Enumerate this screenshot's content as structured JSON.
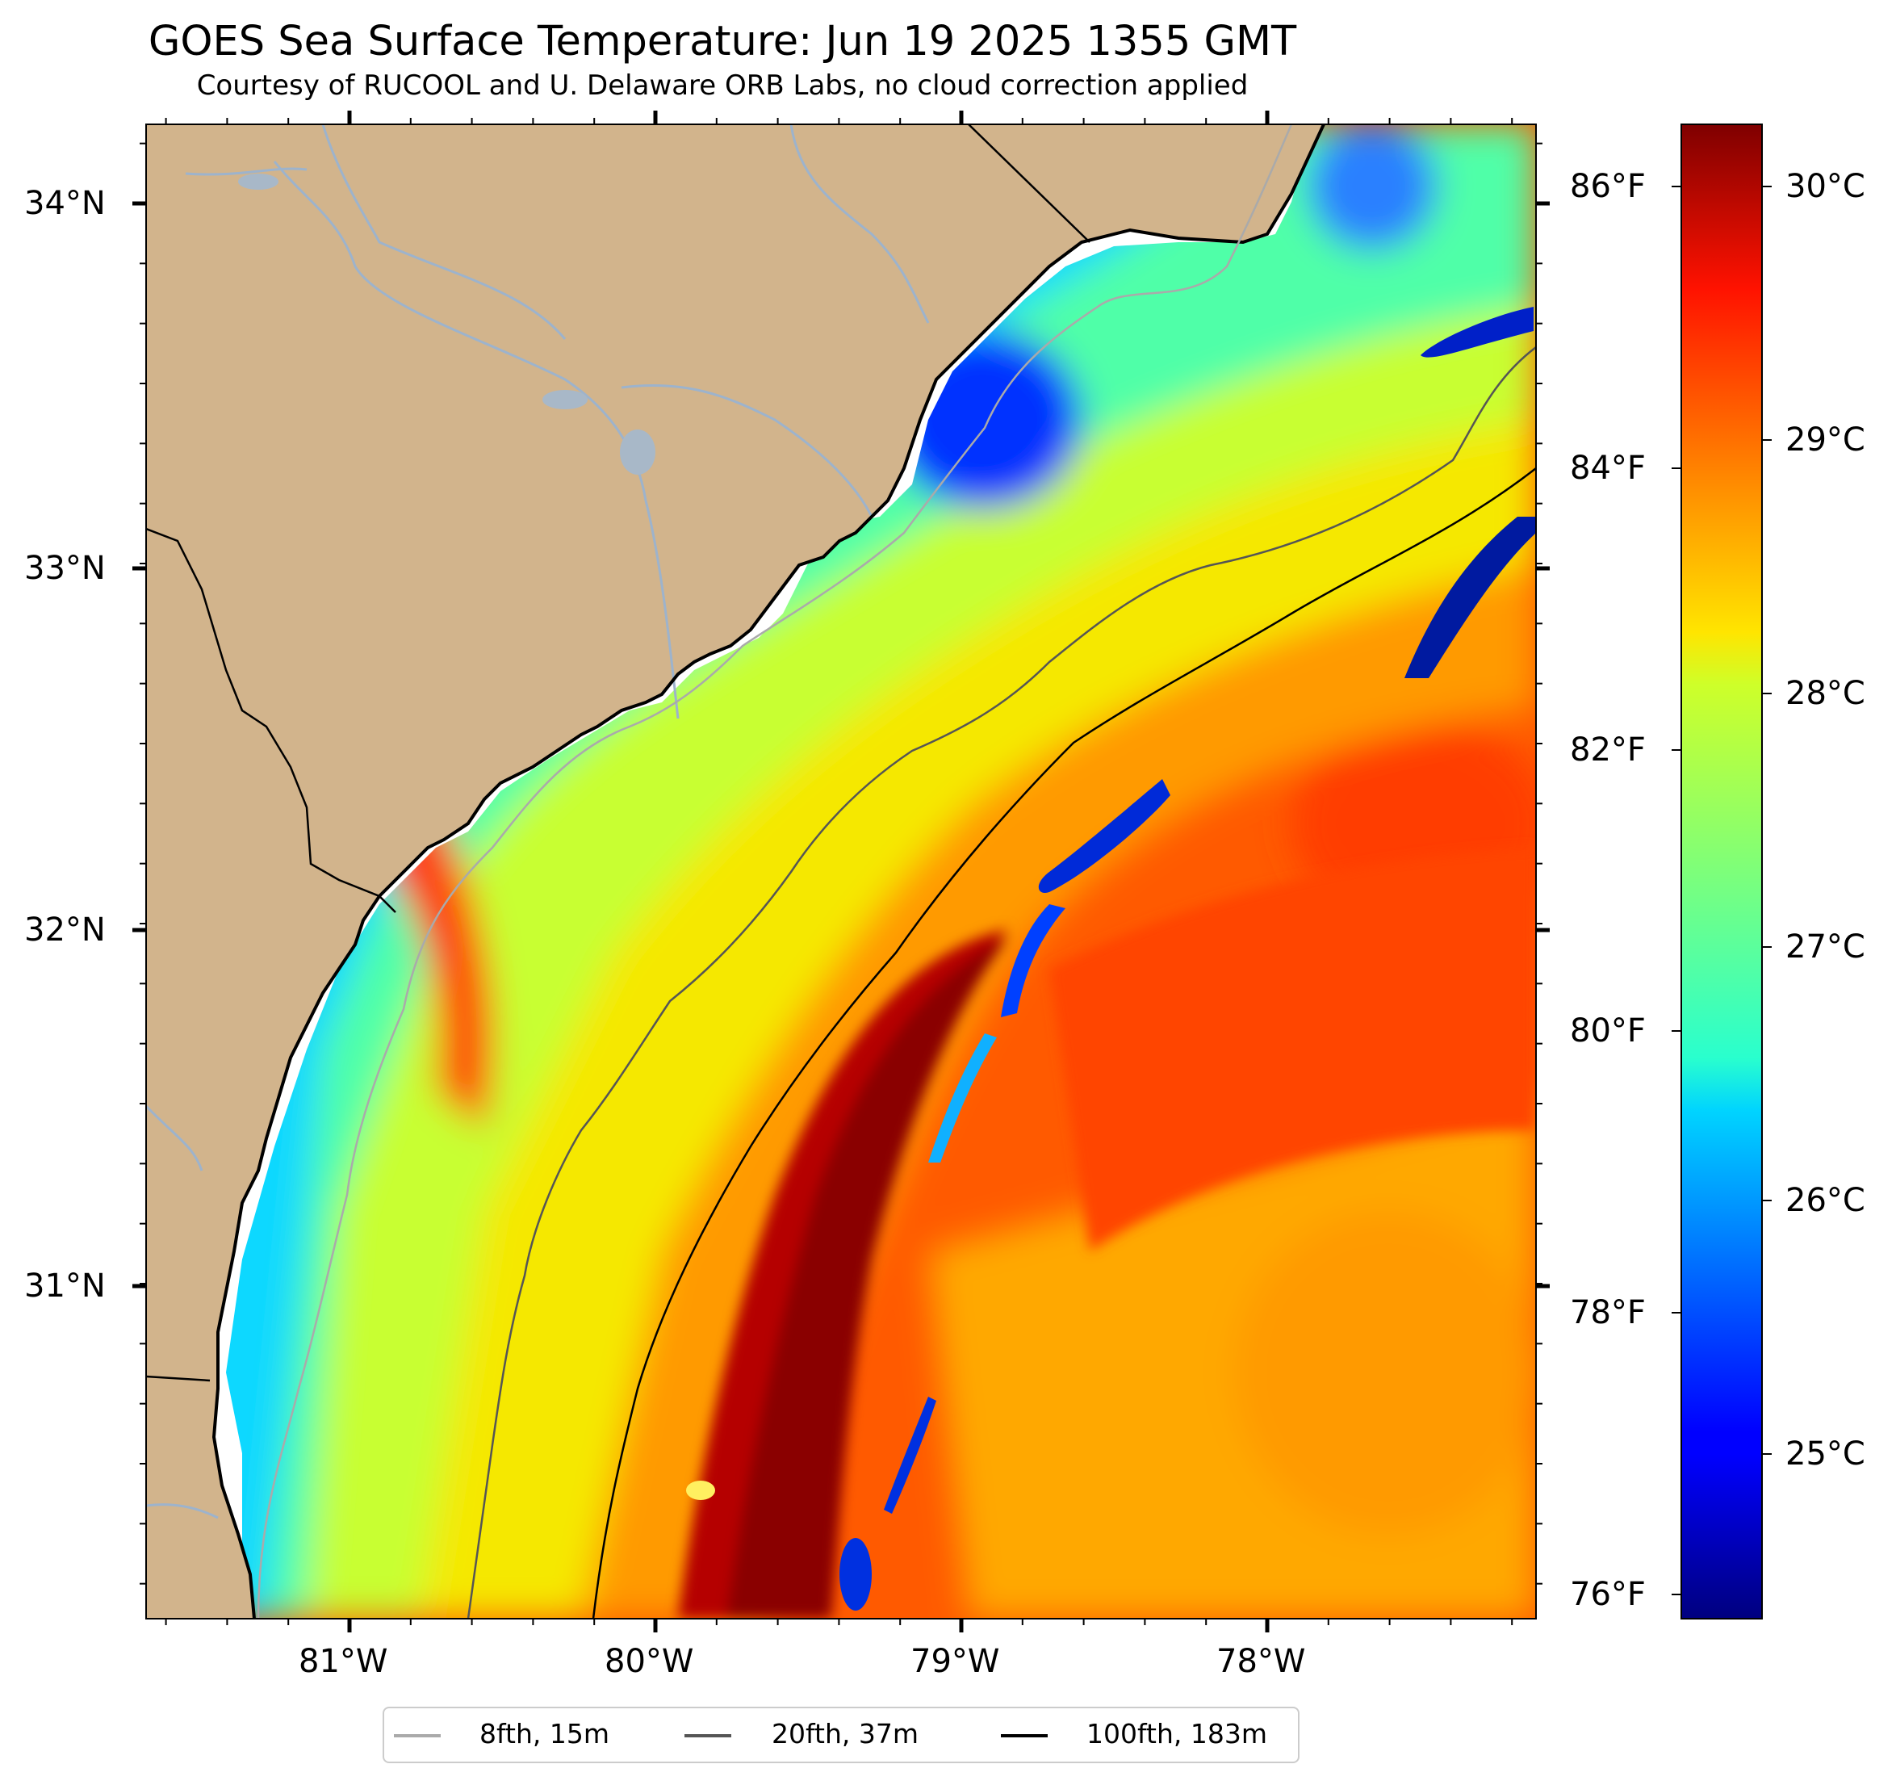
{
  "title": "GOES Sea Surface Temperature: Jun 19 2025 1355 GMT",
  "subtitle": "Courtesy of RUCOOL and U. Delaware ORB Labs, no cloud correction applied",
  "lat_labels": [
    "34°N",
    "33°N",
    "32°N",
    "31°N"
  ],
  "lon_labels": [
    "81°W",
    "80°W",
    "79°W",
    "78°W"
  ],
  "f_labels": [
    "86°F",
    "84°F",
    "82°F",
    "80°F",
    "78°F",
    "76°F"
  ],
  "c_labels": [
    "30°C",
    "29°C",
    "28°C",
    "27°C",
    "26°C",
    "25°C"
  ],
  "colors": {
    "land": "#d2b48c",
    "river": "#9db3cc",
    "coast": "#000000",
    "colormap": "jet"
  },
  "legend": [
    {
      "label": "8fth, 15m",
      "color": "#aaaaaa"
    },
    {
      "label": "20fth, 37m",
      "color": "#555555"
    },
    {
      "label": "100fth, 183m",
      "color": "#000000"
    }
  ],
  "colorbar_range_c": [
    24.25,
    30.25
  ]
}
